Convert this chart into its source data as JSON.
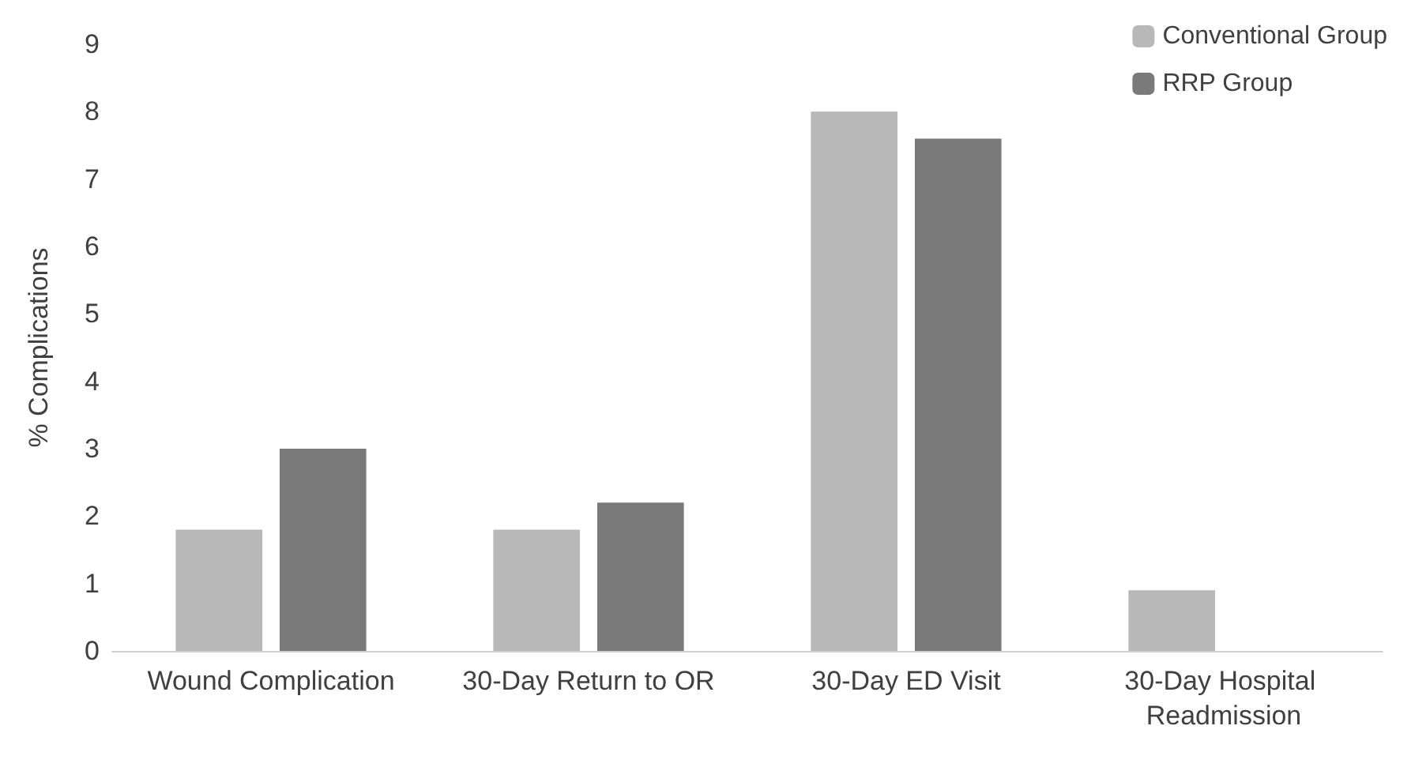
{
  "chart_data": {
    "type": "bar",
    "ylabel": "% Complications",
    "categories": [
      "Wound Complication",
      "30-Day Return to OR",
      "30-Day ED Visit",
      "30-Day Hospital Readmission"
    ],
    "series": [
      {
        "name": "Conventional Group",
        "color": "#b8b8b8",
        "values": [
          1.8,
          1.8,
          8.0,
          0.9
        ]
      },
      {
        "name": "RRP Group",
        "color": "#7a7a7a",
        "values": [
          3.0,
          2.2,
          7.6,
          0
        ]
      }
    ],
    "ylim": [
      0,
      9
    ],
    "yticks": [
      0,
      1,
      2,
      3,
      4,
      5,
      6,
      7,
      8,
      9
    ],
    "grid": false,
    "legend": "top right"
  }
}
